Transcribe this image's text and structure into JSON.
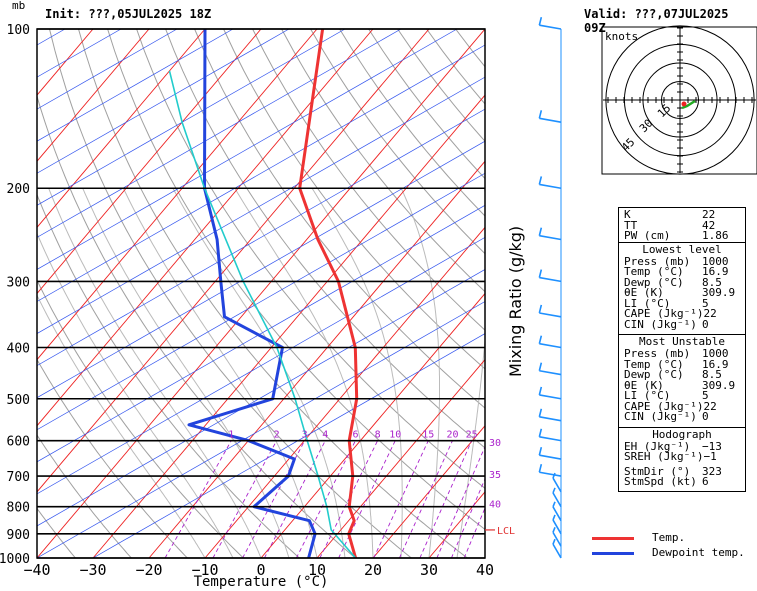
{
  "header": {
    "init_label": "Init: ???,05JUL2025 18Z",
    "valid_label": "Valid: ???,07JUL2025 09Z",
    "pressure_unit": "mb"
  },
  "chart_data": {
    "type": "line",
    "title": "",
    "xlabel": "Temperature (°C)",
    "ylabel_right": "Mixing Ratio (g/kg)",
    "xlim": [
      -40,
      40
    ],
    "ylim_hpa": [
      1000,
      100
    ],
    "y_scale": "log",
    "x_ticks": [
      "−40",
      "−30",
      "−20",
      "−10",
      "0",
      "10",
      "20",
      "30",
      "40"
    ],
    "y_ticks": [
      "100",
      "200",
      "300",
      "400",
      "500",
      "600",
      "700",
      "800",
      "900",
      "1000"
    ],
    "mixing_ratio_labels": [
      "1",
      "2",
      "3",
      "4",
      "6",
      "8",
      "10",
      "15",
      "20",
      "25",
      "30",
      "35",
      "40"
    ],
    "lcl_label": "LCL",
    "lcl_hpa": 885,
    "series": [
      {
        "name": "Temp.",
        "color": "#ee3333",
        "points": [
          [
            1000,
            16.9
          ],
          [
            900,
            12.0
          ],
          [
            850,
            11.0
          ],
          [
            800,
            8.0
          ],
          [
            700,
            4.0
          ],
          [
            600,
            -2.0
          ],
          [
            500,
            -7.0
          ],
          [
            400,
            -15.0
          ],
          [
            300,
            -28.0
          ],
          [
            250,
            -38.0
          ],
          [
            200,
            -49.0
          ],
          [
            100,
            -69.0
          ]
        ]
      },
      {
        "name": "Dewpoint temp.",
        "color": "#2244dd",
        "points": [
          [
            1000,
            8.5
          ],
          [
            900,
            6.0
          ],
          [
            850,
            3.0
          ],
          [
            800,
            -9.0
          ],
          [
            700,
            -7.5
          ],
          [
            650,
            -9.0
          ],
          [
            600,
            -20.0
          ],
          [
            560,
            -33.0
          ],
          [
            500,
            -22.0
          ],
          [
            400,
            -28.0
          ],
          [
            350,
            -43.0
          ],
          [
            300,
            -49.0
          ],
          [
            250,
            -56.0
          ],
          [
            200,
            -66.0
          ],
          [
            100,
            -90.0
          ]
        ]
      },
      {
        "name": "Parcel",
        "color": "#22cccc",
        "points": [
          [
            1000,
            16.9
          ],
          [
            885,
            8.3
          ],
          [
            800,
            4.0
          ],
          [
            700,
            -2.2
          ],
          [
            600,
            -9.5
          ],
          [
            500,
            -18.0
          ],
          [
            400,
            -29.0
          ],
          [
            300,
            -45.0
          ],
          [
            200,
            -66.0
          ],
          [
            150,
            -80.0
          ],
          [
            120,
            -90.0
          ]
        ]
      }
    ],
    "wind_barbs": [
      {
        "p": 100,
        "speed_kt": 10
      },
      {
        "p": 150,
        "speed_kt": 10
      },
      {
        "p": 200,
        "speed_kt": 10
      },
      {
        "p": 250,
        "speed_kt": 10
      },
      {
        "p": 300,
        "speed_kt": 10
      },
      {
        "p": 350,
        "speed_kt": 10
      },
      {
        "p": 400,
        "speed_kt": 10
      },
      {
        "p": 450,
        "speed_kt": 10
      },
      {
        "p": 500,
        "speed_kt": 10
      },
      {
        "p": 550,
        "speed_kt": 10
      },
      {
        "p": 600,
        "speed_kt": 10
      },
      {
        "p": 650,
        "speed_kt": 10
      },
      {
        "p": 700,
        "speed_kt": 10
      },
      {
        "p": 750,
        "speed_kt": 5
      },
      {
        "p": 800,
        "speed_kt": 5
      },
      {
        "p": 850,
        "speed_kt": 5
      },
      {
        "p": 900,
        "speed_kt": 5
      },
      {
        "p": 950,
        "speed_kt": 5
      },
      {
        "p": 1000,
        "speed_kt": 5
      }
    ]
  },
  "hodograph": {
    "units_label": "knots",
    "ring_labels": [
      "15",
      "30",
      "45"
    ]
  },
  "indices": {
    "top": [
      {
        "label": "K",
        "value": "22"
      },
      {
        "label": "TT",
        "value": "42"
      },
      {
        "label": "PW (cm)",
        "value": "1.86"
      }
    ],
    "lowest_title": "Lowest level",
    "lowest": [
      {
        "label": "Press (mb)",
        "value": "1000"
      },
      {
        "label": "Temp (°C)",
        "value": "16.9"
      },
      {
        "label": "Dewp (°C)",
        "value": "8.5"
      },
      {
        "label": "θE (K)",
        "value": "309.9"
      },
      {
        "label": "LI (°C)",
        "value": "5"
      },
      {
        "label": "CAPE (Jkg⁻¹)",
        "value": "22"
      },
      {
        "label": "CIN (Jkg⁻¹)",
        "value": "0"
      }
    ],
    "unstable_title": "Most Unstable",
    "unstable": [
      {
        "label": "Press (mb)",
        "value": "1000"
      },
      {
        "label": "Temp (°C)",
        "value": "16.9"
      },
      {
        "label": "Dewp (°C)",
        "value": "8.5"
      },
      {
        "label": "θE (K)",
        "value": "309.9"
      },
      {
        "label": "LI (°C)",
        "value": "5"
      },
      {
        "label": "CAPE (Jkg⁻¹)",
        "value": "22"
      },
      {
        "label": "CIN (Jkg⁻¹)",
        "value": "0"
      }
    ],
    "hodo_title": "Hodograph",
    "hodo": [
      {
        "label": "EH (Jkg⁻¹)",
        "value": "−13"
      },
      {
        "label": "SREH (Jkg⁻¹)",
        "value": "−1"
      }
    ],
    "storm": [
      {
        "label": "StmDir (°)",
        "value": "323"
      },
      {
        "label": "StmSpd (kt)",
        "value": "6"
      }
    ]
  },
  "legend": {
    "temp_label": "Temp.",
    "dewp_label": "Dewpoint temp.",
    "temp_color": "#ee3333",
    "dewp_color": "#2244dd"
  }
}
